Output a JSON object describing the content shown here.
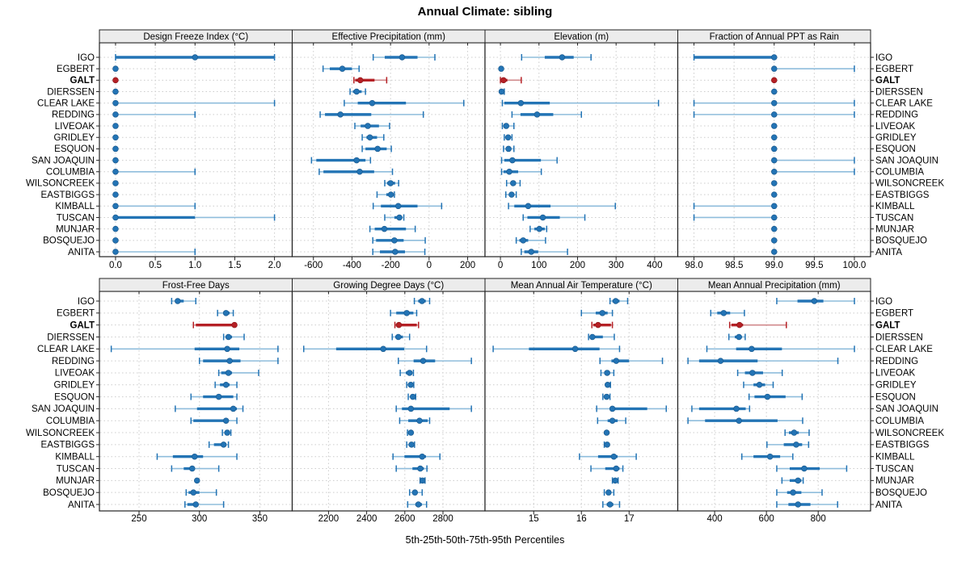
{
  "title": "Annual Climate: sibling",
  "caption": "5th-25th-50th-75th-95th Percentiles",
  "highlight_station": "GALT",
  "colors": {
    "blue": "#2374b5",
    "blue_light": "#8fbddc",
    "red": "#b52025",
    "red_light": "#d08a8c",
    "strip_bg": "#ececec",
    "panel_border": "#222222",
    "grid": "#cccccc",
    "text": "#000000"
  },
  "stations": [
    "IGO",
    "EGBERT",
    "GALT",
    "DIERSSEN",
    "CLEAR LAKE",
    "REDDING",
    "LIVEOAK",
    "GRIDLEY",
    "ESQUON",
    "SAN JOAQUIN",
    "COLUMBIA",
    "WILSONCREEK",
    "EASTBIGGS",
    "KIMBALL",
    "TUSCAN",
    "MUNJAR",
    "BOSQUEJO",
    "ANITA"
  ],
  "percentile_labels": [
    "5th",
    "25th",
    "50th",
    "75th",
    "95th"
  ],
  "chart_data": [
    {
      "type": "percentile-dotplot",
      "title": "Design Freeze Index (°C)",
      "xlim": [
        -0.13,
        2.15
      ],
      "ticks": [
        {
          "v": 0,
          "t": "0.0"
        },
        {
          "v": 0.5,
          "t": "0.5"
        },
        {
          "v": 1,
          "t": "1.0"
        },
        {
          "v": 1.5,
          "t": "1.5"
        },
        {
          "v": 2,
          "t": "2.0"
        }
      ],
      "values": {
        "IGO": [
          0,
          0,
          1,
          2,
          2
        ],
        "EGBERT": [
          0,
          0,
          0,
          0,
          0
        ],
        "GALT": [
          0,
          0,
          0,
          0,
          0
        ],
        "DIERSSEN": [
          0,
          0,
          0,
          0,
          0
        ],
        "CLEAR LAKE": [
          0,
          0,
          0,
          0,
          2
        ],
        "REDDING": [
          0,
          0,
          0,
          0,
          1
        ],
        "LIVEOAK": [
          0,
          0,
          0,
          0,
          0
        ],
        "GRIDLEY": [
          0,
          0,
          0,
          0,
          0
        ],
        "ESQUON": [
          0,
          0,
          0,
          0,
          0
        ],
        "SAN JOAQUIN": [
          0,
          0,
          0,
          0,
          0
        ],
        "COLUMBIA": [
          0,
          0,
          0,
          0,
          1
        ],
        "WILSONCREEK": [
          0,
          0,
          0,
          0,
          0
        ],
        "EASTBIGGS": [
          0,
          0,
          0,
          0,
          0
        ],
        "KIMBALL": [
          0,
          0,
          0,
          0,
          1
        ],
        "TUSCAN": [
          0,
          0,
          0,
          1,
          2
        ],
        "MUNJAR": [
          0,
          0,
          0,
          0,
          0
        ],
        "BOSQUEJO": [
          0,
          0,
          0,
          0,
          0
        ],
        "ANITA": [
          0,
          0,
          0,
          0,
          1
        ]
      }
    },
    {
      "type": "percentile-dotplot",
      "title": "Effective Precipitation (mm)",
      "xlim": [
        -680,
        260
      ],
      "ticks": [
        {
          "v": -600,
          "t": "-600"
        },
        {
          "v": -400,
          "t": "-400"
        },
        {
          "v": -200,
          "t": "-200"
        },
        {
          "v": 0,
          "t": "0"
        },
        {
          "v": 200,
          "t": "200"
        }
      ],
      "values": {
        "IGO": [
          -290,
          -230,
          -140,
          -60,
          30
        ],
        "EGBERT": [
          -550,
          -515,
          -450,
          -400,
          -363
        ],
        "GALT": [
          -390,
          -383,
          -357,
          -283,
          -220
        ],
        "DIERSSEN": [
          -410,
          -395,
          -376,
          -350,
          -330
        ],
        "CLEAR LAKE": [
          -440,
          -370,
          -295,
          -120,
          180
        ],
        "REDDING": [
          -565,
          -540,
          -460,
          -300,
          -30
        ],
        "LIVEOAK": [
          -385,
          -355,
          -318,
          -260,
          -205
        ],
        "GRIDLEY": [
          -347,
          -325,
          -307,
          -270,
          -235
        ],
        "ESQUON": [
          -347,
          -330,
          -267,
          -220,
          -196
        ],
        "SAN JOAQUIN": [
          -610,
          -585,
          -376,
          -330,
          -304
        ],
        "COLUMBIA": [
          -570,
          -548,
          -360,
          -285,
          -190
        ],
        "WILSONCREEK": [
          -230,
          -218,
          -200,
          -176,
          -158
        ],
        "EASTBIGGS": [
          -270,
          -222,
          -198,
          -186,
          -180
        ],
        "KIMBALL": [
          -290,
          -250,
          -160,
          -60,
          65
        ],
        "TUSCAN": [
          -230,
          -180,
          -154,
          -140,
          -131
        ],
        "MUNJAR": [
          -307,
          -282,
          -232,
          -120,
          -72
        ],
        "BOSQUEJO": [
          -292,
          -275,
          -180,
          -132,
          -20
        ],
        "ANITA": [
          -292,
          -255,
          -176,
          -125,
          -22
        ]
      }
    },
    {
      "type": "percentile-dotplot",
      "title": "Elevation (m)",
      "xlim": [
        -25,
        445
      ],
      "ticks": [
        {
          "v": 0,
          "t": "0"
        },
        {
          "v": 100,
          "t": "100"
        },
        {
          "v": 200,
          "t": "200"
        },
        {
          "v": 300,
          "t": "300"
        },
        {
          "v": 400,
          "t": "400"
        }
      ],
      "values": {
        "IGO": [
          55,
          115,
          160,
          190,
          235
        ],
        "EGBERT": [
          0,
          1,
          2,
          4,
          7
        ],
        "GALT": [
          0,
          3,
          8,
          18,
          54
        ],
        "DIERSSEN": [
          0,
          1,
          3,
          6,
          10
        ],
        "CLEAR LAKE": [
          5,
          10,
          53,
          128,
          410
        ],
        "REDDING": [
          30,
          52,
          95,
          137,
          210
        ],
        "LIVEOAK": [
          5,
          10,
          15,
          22,
          35
        ],
        "GRIDLEY": [
          10,
          15,
          20,
          25,
          30
        ],
        "ESQUON": [
          8,
          14,
          21,
          27,
          35
        ],
        "SAN JOAQUIN": [
          3,
          10,
          31,
          105,
          147
        ],
        "COLUMBIA": [
          3,
          8,
          23,
          46,
          106
        ],
        "WILSONCREEK": [
          16,
          26,
          33,
          40,
          51
        ],
        "EASTBIGGS": [
          14,
          24,
          29,
          34,
          41
        ],
        "KIMBALL": [
          21,
          36,
          72,
          130,
          298
        ],
        "TUSCAN": [
          59,
          70,
          110,
          154,
          219
        ],
        "MUNJAR": [
          77,
          88,
          101,
          115,
          120
        ],
        "BOSQUEJO": [
          41,
          49,
          59,
          72,
          117
        ],
        "ANITA": [
          54,
          62,
          80,
          98,
          174
        ]
      }
    },
    {
      "type": "percentile-dotplot",
      "title": "Fraction of Annual PPT as Rain",
      "xlim": [
        97.87,
        100.13
      ],
      "ticks": [
        {
          "v": 98,
          "t": "98.0"
        },
        {
          "v": 98.5,
          "t": "98.5"
        },
        {
          "v": 99,
          "t": "99.0"
        },
        {
          "v": 99.5,
          "t": "99.5"
        },
        {
          "v": 100,
          "t": "100.0"
        }
      ],
      "values": {
        "IGO": [
          98,
          98,
          99,
          99,
          99
        ],
        "EGBERT": [
          99,
          99,
          99,
          99,
          100
        ],
        "GALT": [
          99,
          99,
          99,
          99,
          99
        ],
        "DIERSSEN": [
          99,
          99,
          99,
          99,
          99
        ],
        "CLEAR LAKE": [
          98,
          99,
          99,
          99,
          100
        ],
        "REDDING": [
          98,
          99,
          99,
          99,
          100
        ],
        "LIVEOAK": [
          99,
          99,
          99,
          99,
          99
        ],
        "GRIDLEY": [
          99,
          99,
          99,
          99,
          99
        ],
        "ESQUON": [
          99,
          99,
          99,
          99,
          99
        ],
        "SAN JOAQUIN": [
          99,
          99,
          99,
          99,
          100
        ],
        "COLUMBIA": [
          99,
          99,
          99,
          99,
          100
        ],
        "WILSONCREEK": [
          99,
          99,
          99,
          99,
          99
        ],
        "EASTBIGGS": [
          99,
          99,
          99,
          99,
          99
        ],
        "KIMBALL": [
          98,
          99,
          99,
          99,
          99
        ],
        "TUSCAN": [
          98,
          99,
          99,
          99,
          99
        ],
        "MUNJAR": [
          99,
          99,
          99,
          99,
          99
        ],
        "BOSQUEJO": [
          99,
          99,
          99,
          99,
          99
        ],
        "ANITA": [
          99,
          99,
          99,
          99,
          99
        ]
      }
    },
    {
      "type": "percentile-dotplot",
      "title": "Frost-Free Days",
      "xlim": [
        222,
        372
      ],
      "ticks": [
        {
          "v": 250,
          "t": "250"
        },
        {
          "v": 300,
          "t": "300"
        },
        {
          "v": 350,
          "t": "350"
        }
      ],
      "values": {
        "IGO": [
          277,
          280,
          282,
          287,
          297
        ],
        "EGBERT": [
          315,
          320,
          322,
          325,
          328
        ],
        "GALT": [
          295,
          297,
          329,
          330,
          331
        ],
        "DIERSSEN": [
          320,
          322,
          324,
          327,
          337
        ],
        "CLEAR LAKE": [
          227,
          296,
          323,
          333,
          365
        ],
        "REDDING": [
          300,
          303,
          325,
          334,
          365
        ],
        "LIVEOAK": [
          316,
          318,
          324,
          327,
          349
        ],
        "GRIDLEY": [
          313,
          317,
          322,
          325,
          331
        ],
        "ESQUON": [
          293,
          303,
          316,
          328,
          331
        ],
        "SAN JOAQUIN": [
          280,
          298,
          328,
          331,
          336
        ],
        "COLUMBIA": [
          293,
          295,
          322,
          324,
          331
        ],
        "WILSONCREEK": [
          319,
          321,
          323,
          324,
          326
        ],
        "EASTBIGGS": [
          308,
          312,
          320,
          322,
          324
        ],
        "KIMBALL": [
          265,
          278,
          296,
          303,
          331
        ],
        "TUSCAN": [
          277,
          287,
          294,
          296,
          316
        ],
        "MUNJAR": [
          296,
          297,
          298,
          299,
          300
        ],
        "BOSQUEJO": [
          289,
          291,
          295,
          300,
          314
        ],
        "ANITA": [
          288,
          290,
          297,
          299,
          320
        ]
      }
    },
    {
      "type": "percentile-dotplot",
      "title": "Growing Degree Days (°C)",
      "xlim": [
        2040,
        2990
      ],
      "ticks": [
        {
          "v": 2200,
          "t": "2200"
        },
        {
          "v": 2400,
          "t": "2400"
        },
        {
          "v": 2600,
          "t": "2600"
        },
        {
          "v": 2800,
          "t": "2800"
        }
      ],
      "values": {
        "IGO": [
          2650,
          2670,
          2690,
          2710,
          2730
        ],
        "EGBERT": [
          2525,
          2555,
          2610,
          2645,
          2662
        ],
        "GALT": [
          2548,
          2553,
          2569,
          2663,
          2672
        ],
        "DIERSSEN": [
          2534,
          2550,
          2566,
          2590,
          2625
        ],
        "CLEAR LAKE": [
          2070,
          2240,
          2487,
          2597,
          2714
        ],
        "REDDING": [
          2566,
          2646,
          2696,
          2759,
          2949
        ],
        "LIVEOAK": [
          2576,
          2605,
          2625,
          2636,
          2645
        ],
        "GRIDLEY": [
          2610,
          2621,
          2631,
          2640,
          2647
        ],
        "ESQUON": [
          2618,
          2630,
          2642,
          2650,
          2657
        ],
        "SAN JOAQUIN": [
          2555,
          2585,
          2632,
          2835,
          2949
        ],
        "COLUMBIA": [
          2573,
          2618,
          2677,
          2720,
          2730
        ],
        "WILSONCREEK": [
          2614,
          2622,
          2632,
          2638,
          2643
        ],
        "EASTBIGGS": [
          2610,
          2622,
          2635,
          2643,
          2651
        ],
        "KIMBALL": [
          2538,
          2598,
          2691,
          2711,
          2784
        ],
        "TUSCAN": [
          2555,
          2640,
          2681,
          2700,
          2716
        ],
        "MUNJAR": [
          2680,
          2688,
          2693,
          2700,
          2706
        ],
        "BOSQUEJO": [
          2625,
          2640,
          2653,
          2666,
          2691
        ],
        "ANITA": [
          2615,
          2655,
          2671,
          2690,
          2714
        ]
      }
    },
    {
      "type": "percentile-dotplot",
      "title": "Mean Annual Air Temperature (°C)",
      "xlim": [
        14.1,
        17.9
      ],
      "ticks": [
        {
          "v": 15,
          "t": "15"
        },
        {
          "v": 16,
          "t": "16"
        },
        {
          "v": 17,
          "t": "17"
        }
      ],
      "values": {
        "IGO": [
          16.6,
          16.65,
          16.72,
          16.8,
          16.97
        ],
        "EGBERT": [
          16.0,
          16.3,
          16.44,
          16.55,
          16.65
        ],
        "GALT": [
          16.22,
          16.25,
          16.35,
          16.62,
          16.65
        ],
        "DIERSSEN": [
          16.15,
          16.18,
          16.23,
          16.45,
          16.69
        ],
        "CLEAR LAKE": [
          14.15,
          14.9,
          15.87,
          16.38,
          16.8
        ],
        "REDDING": [
          16.39,
          16.63,
          16.73,
          17.0,
          17.7
        ],
        "LIVEOAK": [
          16.41,
          16.48,
          16.54,
          16.6,
          16.68
        ],
        "GRIDLEY": [
          16.5,
          16.52,
          16.55,
          16.58,
          16.61
        ],
        "ESQUON": [
          16.45,
          16.5,
          16.53,
          16.57,
          16.6
        ],
        "SAN JOAQUIN": [
          16.32,
          16.6,
          16.65,
          17.38,
          17.78
        ],
        "COLUMBIA": [
          16.34,
          16.55,
          16.65,
          16.76,
          16.93
        ],
        "WILSONCREEK": [
          16.48,
          16.51,
          16.53,
          16.56,
          16.58
        ],
        "EASTBIGGS": [
          16.48,
          16.51,
          16.54,
          16.56,
          16.58
        ],
        "KIMBALL": [
          15.96,
          16.35,
          16.68,
          16.76,
          17.15
        ],
        "TUSCAN": [
          16.2,
          16.5,
          16.73,
          16.8,
          16.87
        ],
        "MUNJAR": [
          16.65,
          16.68,
          16.71,
          16.74,
          16.77
        ],
        "BOSQUEJO": [
          16.48,
          16.52,
          16.57,
          16.62,
          16.68
        ],
        "ANITA": [
          16.45,
          16.53,
          16.6,
          16.67,
          16.8
        ]
      }
    },
    {
      "type": "percentile-dotplot",
      "title": "Mean Annual Precipitation (mm)",
      "xlim": [
        280,
        980
      ],
      "ticks": [
        {
          "v": 400,
          "t": "400"
        },
        {
          "v": 600,
          "t": "600"
        },
        {
          "v": 800,
          "t": "800"
        }
      ],
      "values": {
        "IGO": [
          640,
          720,
          785,
          820,
          940
        ],
        "EGBERT": [
          385,
          410,
          435,
          460,
          515
        ],
        "GALT": [
          458,
          465,
          496,
          510,
          677
        ],
        "DIERSSEN": [
          455,
          478,
          494,
          505,
          518
        ],
        "CLEAR LAKE": [
          370,
          483,
          543,
          660,
          940
        ],
        "REDDING": [
          297,
          340,
          423,
          566,
          876
        ],
        "LIVEOAK": [
          489,
          517,
          546,
          587,
          661
        ],
        "GRIDLEY": [
          512,
          550,
          573,
          595,
          626
        ],
        "ESQUON": [
          533,
          554,
          604,
          674,
          738
        ],
        "SAN JOAQUIN": [
          312,
          340,
          484,
          520,
          535
        ],
        "COLUMBIA": [
          297,
          363,
          494,
          643,
          740
        ],
        "WILSONCREEK": [
          672,
          687,
          707,
          725,
          765
        ],
        "EASTBIGGS": [
          602,
          667,
          715,
          738,
          763
        ],
        "KIMBALL": [
          505,
          550,
          614,
          653,
          702
        ],
        "TUSCAN": [
          640,
          690,
          746,
          806,
          910
        ],
        "MUNJAR": [
          660,
          690,
          722,
          735,
          742
        ],
        "BOSQUEJO": [
          640,
          680,
          703,
          735,
          815
        ],
        "ANITA": [
          640,
          685,
          722,
          770,
          875
        ]
      }
    }
  ]
}
